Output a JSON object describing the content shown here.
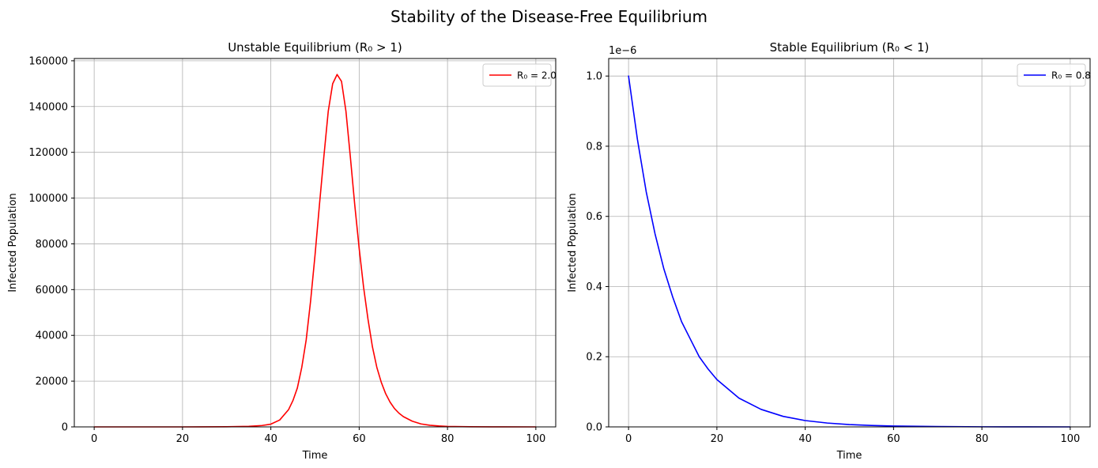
{
  "figure": {
    "suptitle": "Stability of the Disease-Free Equilibrium"
  },
  "chart_data": [
    {
      "type": "line",
      "title": "Unstable Equilibrium (R₀ > 1)",
      "xlabel": "Time",
      "ylabel": "Infected Population",
      "xlim": [
        -4.5,
        104.5
      ],
      "ylim": [
        0,
        161000
      ],
      "xticks": [
        0,
        20,
        40,
        60,
        80,
        100
      ],
      "xtick_labels": [
        "0",
        "20",
        "40",
        "60",
        "80",
        "100"
      ],
      "yticks": [
        0,
        20000,
        40000,
        60000,
        80000,
        100000,
        120000,
        140000,
        160000
      ],
      "ytick_labels": [
        "0",
        "20000",
        "40000",
        "60000",
        "80000",
        "100000",
        "120000",
        "140000",
        "160000"
      ],
      "y_offset_label": "",
      "grid": true,
      "legend_position": "upper-right",
      "series": [
        {
          "name": "R₀ = 2.0",
          "color": "#ff0000",
          "x": [
            0,
            10,
            20,
            30,
            35,
            38,
            40,
            42,
            44,
            45,
            46,
            47,
            48,
            49,
            50,
            51,
            52,
            53,
            54,
            55,
            56,
            57,
            58,
            59,
            60,
            61,
            62,
            63,
            64,
            65,
            66,
            67,
            68,
            69,
            70,
            72,
            74,
            76,
            78,
            80,
            85,
            90,
            100
          ],
          "values": [
            0,
            0,
            0,
            50,
            250,
            600,
            1200,
            3000,
            7500,
            11500,
            17000,
            26000,
            38000,
            55000,
            75000,
            97000,
            118000,
            138000,
            150000,
            154000,
            151000,
            138000,
            118000,
            97000,
            78000,
            61000,
            47000,
            35000,
            26000,
            19500,
            14500,
            10800,
            8000,
            6000,
            4500,
            2500,
            1300,
            700,
            400,
            200,
            50,
            15,
            0
          ]
        }
      ]
    },
    {
      "type": "line",
      "title": "Stable Equilibrium (R₀ < 1)",
      "xlabel": "Time",
      "ylabel": "Infected Population",
      "xlim": [
        -4.5,
        104.5
      ],
      "ylim": [
        0,
        1.05
      ],
      "xticks": [
        0,
        20,
        40,
        60,
        80,
        100
      ],
      "xtick_labels": [
        "0",
        "20",
        "40",
        "60",
        "80",
        "100"
      ],
      "yticks": [
        0,
        0.2,
        0.4,
        0.6,
        0.8,
        1.0
      ],
      "ytick_labels": [
        "0.0",
        "0.2",
        "0.4",
        "0.6",
        "0.8",
        "1.0"
      ],
      "y_offset_label": "1e−6",
      "grid": true,
      "legend_position": "upper-right",
      "series": [
        {
          "name": "R₀ = 0.8",
          "color": "#0000ff",
          "x": [
            0,
            2,
            4,
            6,
            8,
            10,
            12,
            14,
            16,
            18,
            20,
            25,
            30,
            35,
            40,
            45,
            50,
            55,
            60,
            70,
            80,
            90,
            100
          ],
          "values": [
            1.0,
            0.82,
            0.67,
            0.55,
            0.45,
            0.37,
            0.3,
            0.25,
            0.2,
            0.165,
            0.135,
            0.082,
            0.05,
            0.03,
            0.018,
            0.011,
            0.0067,
            0.0041,
            0.0025,
            0.0009,
            0.0003,
            0.0001,
            0.0
          ]
        }
      ]
    }
  ]
}
